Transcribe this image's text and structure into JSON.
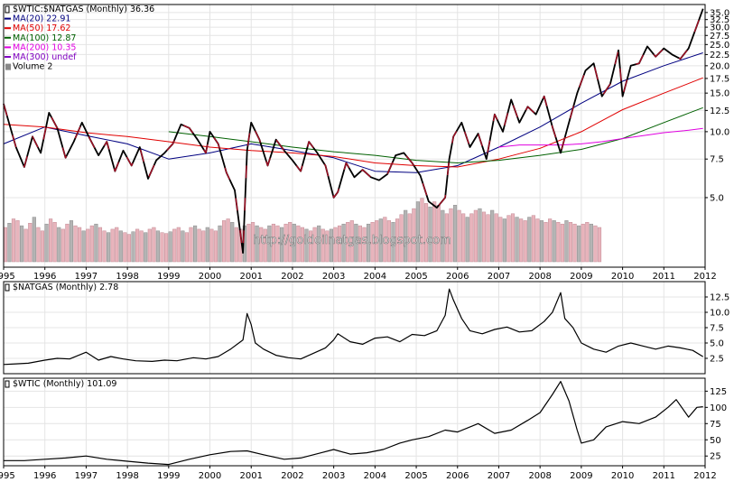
{
  "watermark": "http://goldoilnatgas.blogspot.com",
  "chart_data": [
    {
      "type": "line",
      "panel": "ratio",
      "title": "$WTIC:$NATGAS (Monthly) 36.36",
      "scale": "log",
      "ylim": [
        2.5,
        37
      ],
      "y_ticks": [
        "35.0",
        "32.5",
        "30.0",
        "27.5",
        "25.0",
        "22.5",
        "20.0",
        "17.5",
        "15.0",
        "12.5",
        "10.0",
        "7.5",
        "5.0"
      ],
      "y_tick_values": [
        35,
        32.5,
        30,
        27.5,
        25,
        22.5,
        20,
        17.5,
        15,
        12.5,
        10,
        7.5,
        5
      ],
      "x_ticks": [
        "1995",
        "1996",
        "1997",
        "1998",
        "1999",
        "2000",
        "2001",
        "2002",
        "2003",
        "2004",
        "2005",
        "2006",
        "2007",
        "2008",
        "2009",
        "2010",
        "2011",
        "2012"
      ],
      "grid": true,
      "legend_position": "top-left",
      "legend": [
        {
          "label": "$WTIC:$NATGAS (Monthly) 36.36",
          "color": "#000000"
        },
        {
          "label": "MA(20) 22.91",
          "color": "#000080"
        },
        {
          "label": "MA(50) 17.62",
          "color": "#e00000"
        },
        {
          "label": "MA(100) 12.87",
          "color": "#006000"
        },
        {
          "label": "MA(200) 10.35",
          "color": "#e000e0"
        },
        {
          "label": "MA(300) undef",
          "color": "#8000c0"
        },
        {
          "label": "Volume 2",
          "color": "#888888"
        }
      ],
      "series": [
        {
          "name": "$WTIC:$NATGAS",
          "color": "#000000",
          "x": [
            1995.0,
            1995.1,
            1995.3,
            1995.5,
            1995.7,
            1995.9,
            1996.1,
            1996.3,
            1996.5,
            1996.7,
            1996.9,
            1997.1,
            1997.3,
            1997.5,
            1997.7,
            1997.9,
            1998.1,
            1998.3,
            1998.5,
            1998.7,
            1998.9,
            1999.1,
            1999.3,
            1999.5,
            1999.7,
            1999.9,
            2000.0,
            2000.2,
            2000.4,
            2000.6,
            2000.8,
            2000.9,
            2001.0,
            2001.2,
            2001.4,
            2001.6,
            2001.8,
            2002.0,
            2002.2,
            2002.4,
            2002.6,
            2002.8,
            2003.0,
            2003.1,
            2003.3,
            2003.5,
            2003.7,
            2003.9,
            2004.1,
            2004.3,
            2004.5,
            2004.7,
            2004.9,
            2005.1,
            2005.3,
            2005.5,
            2005.7,
            2005.8,
            2005.9,
            2006.1,
            2006.3,
            2006.5,
            2006.7,
            2006.9,
            2007.1,
            2007.3,
            2007.5,
            2007.7,
            2007.9,
            2008.1,
            2008.3,
            2008.5,
            2008.7,
            2008.9,
            2009.1,
            2009.3,
            2009.5,
            2009.7,
            2009.9,
            2010.0,
            2010.2,
            2010.4,
            2010.6,
            2010.8,
            2011.0,
            2011.2,
            2011.4,
            2011.6,
            2011.8,
            2011.95
          ],
          "values": [
            13.4,
            11.5,
            8.5,
            6.9,
            9.5,
            8.0,
            12.2,
            10.4,
            7.6,
            9.0,
            11.0,
            9.2,
            7.8,
            9.0,
            6.6,
            8.2,
            7.0,
            8.5,
            6.1,
            7.4,
            8.0,
            8.8,
            10.8,
            10.4,
            9.2,
            8.0,
            10.0,
            8.8,
            6.5,
            5.4,
            2.8,
            8.2,
            11.0,
            9.2,
            7.0,
            9.2,
            8.2,
            7.4,
            6.6,
            9.0,
            8.0,
            7.0,
            5.0,
            5.3,
            7.2,
            6.2,
            6.7,
            6.2,
            6.0,
            6.4,
            7.8,
            8.0,
            7.2,
            6.3,
            4.8,
            4.5,
            5.0,
            7.5,
            9.5,
            11.0,
            8.5,
            9.8,
            7.5,
            12.0,
            10.0,
            14.0,
            11.0,
            13.0,
            12.0,
            14.5,
            10.5,
            8.0,
            11.0,
            15.0,
            19.0,
            20.5,
            14.5,
            16.5,
            23.5,
            14.5,
            20.0,
            20.5,
            24.5,
            22.0,
            24.0,
            22.5,
            21.5,
            24.0,
            30.5,
            36.4
          ]
        },
        {
          "name": "MA(20)",
          "color": "#000080",
          "x": [
            1995.0,
            1996.0,
            1997.0,
            1998.0,
            1999.0,
            2000.0,
            2001.0,
            2002.0,
            2003.0,
            2004.0,
            2005.0,
            2006.0,
            2007.0,
            2008.0,
            2009.0,
            2010.0,
            2011.0,
            2011.95
          ],
          "values": [
            8.8,
            10.5,
            9.6,
            8.8,
            7.5,
            8.0,
            8.8,
            8.2,
            7.6,
            6.6,
            6.5,
            7.0,
            8.5,
            10.5,
            13.5,
            17.0,
            20.0,
            22.91
          ]
        },
        {
          "name": "MA(50)",
          "color": "#e00000",
          "x": [
            1995.0,
            1996.0,
            1997.0,
            1998.0,
            1999.0,
            2000.0,
            2001.0,
            2002.0,
            2003.0,
            2004.0,
            2005.0,
            2006.0,
            2007.0,
            2008.0,
            2009.0,
            2010.0,
            2011.0,
            2011.95
          ],
          "values": [
            10.8,
            10.5,
            9.9,
            9.5,
            9.0,
            8.5,
            8.2,
            8.0,
            7.7,
            7.2,
            7.0,
            6.9,
            7.5,
            8.4,
            10.0,
            12.6,
            15.0,
            17.62
          ]
        },
        {
          "name": "MA(100)",
          "color": "#006000",
          "x": [
            1999.0,
            2000.0,
            2001.0,
            2002.0,
            2003.0,
            2004.0,
            2005.0,
            2006.0,
            2007.0,
            2008.0,
            2009.0,
            2010.0,
            2011.0,
            2011.95
          ],
          "values": [
            10.0,
            9.5,
            9.0,
            8.5,
            8.1,
            7.8,
            7.4,
            7.2,
            7.4,
            7.8,
            8.3,
            9.3,
            11.0,
            12.87
          ]
        },
        {
          "name": "MA(200)",
          "color": "#e000e0",
          "x": [
            2007.0,
            2007.5,
            2008.0,
            2008.5,
            2009.0,
            2009.5,
            2010.0,
            2010.5,
            2011.0,
            2011.5,
            2011.95
          ],
          "values": [
            8.5,
            8.7,
            8.7,
            8.7,
            8.8,
            9.0,
            9.3,
            9.6,
            9.9,
            10.1,
            10.35
          ]
        }
      ],
      "volume": {
        "name": "Volume",
        "x_start": 1995.0,
        "step": 0.1,
        "values": [
          40,
          45,
          50,
          48,
          42,
          38,
          45,
          52,
          40,
          36,
          44,
          50,
          46,
          40,
          38,
          44,
          48,
          42,
          40,
          36,
          38,
          42,
          44,
          40,
          36,
          34,
          38,
          40,
          36,
          34,
          32,
          35,
          38,
          36,
          34,
          38,
          40,
          36,
          34,
          33,
          35,
          38,
          40,
          36,
          34,
          40,
          42,
          38,
          36,
          40,
          38,
          36,
          42,
          48,
          50,
          46,
          40,
          38,
          42,
          44,
          46,
          42,
          40,
          38,
          42,
          44,
          42,
          40,
          44,
          46,
          44,
          42,
          40,
          38,
          36,
          40,
          42,
          38,
          36,
          38,
          40,
          42,
          44,
          46,
          48,
          44,
          42,
          40,
          44,
          46,
          48,
          50,
          52,
          48,
          46,
          50,
          55,
          60,
          56,
          62,
          70,
          74,
          68,
          64,
          70,
          66,
          60,
          56,
          62,
          66,
          60,
          56,
          52,
          56,
          60,
          62,
          58,
          55,
          60,
          56,
          52,
          50,
          54,
          56,
          52,
          50,
          48,
          52,
          54,
          50,
          48,
          46,
          50,
          48,
          46,
          44,
          48,
          46,
          44,
          42,
          44,
          46,
          44,
          42,
          40
        ]
      }
    },
    {
      "type": "line",
      "panel": "natgas",
      "title": "$NATGAS (Monthly) 2.78",
      "ylim": [
        0,
        15
      ],
      "y_ticks": [
        "12.5",
        "10.0",
        "7.5",
        "5.0",
        "2.5"
      ],
      "y_tick_values": [
        12.5,
        10,
        7.5,
        5,
        2.5
      ],
      "grid": true,
      "series": [
        {
          "name": "$NATGAS",
          "color": "#000000",
          "x": [
            1995.0,
            1995.3,
            1995.6,
            1996.0,
            1996.3,
            1996.6,
            1997.0,
            1997.3,
            1997.6,
            1997.9,
            1998.2,
            1998.6,
            1998.9,
            1999.2,
            1999.6,
            1999.9,
            2000.2,
            2000.5,
            2000.8,
            2000.9,
            2001.0,
            2001.1,
            2001.3,
            2001.6,
            2001.9,
            2002.2,
            2002.5,
            2002.8,
            2003.0,
            2003.1,
            2003.4,
            2003.7,
            2004.0,
            2004.3,
            2004.6,
            2004.9,
            2005.2,
            2005.5,
            2005.7,
            2005.8,
            2005.9,
            2006.1,
            2006.3,
            2006.6,
            2006.9,
            2007.2,
            2007.5,
            2007.8,
            2008.1,
            2008.3,
            2008.5,
            2008.6,
            2008.8,
            2009.0,
            2009.3,
            2009.6,
            2009.9,
            2010.2,
            2010.5,
            2010.8,
            2011.1,
            2011.4,
            2011.7,
            2011.95
          ],
          "values": [
            1.5,
            1.6,
            1.7,
            2.2,
            2.5,
            2.4,
            3.5,
            2.2,
            2.8,
            2.4,
            2.1,
            2.0,
            2.2,
            2.1,
            2.6,
            2.4,
            2.8,
            4.0,
            5.5,
            9.8,
            8.0,
            5.0,
            4.0,
            3.0,
            2.6,
            2.4,
            3.3,
            4.2,
            5.5,
            6.5,
            5.2,
            4.8,
            5.8,
            6.0,
            5.2,
            6.4,
            6.2,
            7.0,
            9.5,
            13.8,
            12.0,
            9.0,
            7.0,
            6.5,
            7.2,
            7.6,
            6.8,
            7.0,
            8.5,
            10.0,
            13.2,
            9.0,
            7.5,
            5.0,
            4.0,
            3.5,
            4.5,
            5.0,
            4.5,
            4.0,
            4.5,
            4.2,
            3.8,
            2.78
          ]
        }
      ]
    },
    {
      "type": "line",
      "panel": "wtic",
      "title": "$WTIC (Monthly) 101.09",
      "ylim": [
        10,
        145
      ],
      "y_ticks": [
        "125",
        "100",
        "75",
        "50",
        "25"
      ],
      "y_tick_values": [
        125,
        100,
        75,
        50,
        25
      ],
      "x_ticks": [
        "1995",
        "1996",
        "1997",
        "1998",
        "1999",
        "2000",
        "2001",
        "2002",
        "2003",
        "2004",
        "2005",
        "2006",
        "2007",
        "2008",
        "2009",
        "2010",
        "2011",
        "2012"
      ],
      "grid": true,
      "series": [
        {
          "name": "$WTIC",
          "color": "#000000",
          "x": [
            1995.0,
            1995.5,
            1996.0,
            1996.5,
            1997.0,
            1997.5,
            1998.0,
            1998.5,
            1999.0,
            1999.5,
            2000.0,
            2000.5,
            2000.9,
            2001.3,
            2001.8,
            2002.2,
            2002.7,
            2003.0,
            2003.4,
            2003.8,
            2004.2,
            2004.6,
            2004.9,
            2005.3,
            2005.7,
            2006.0,
            2006.5,
            2006.9,
            2007.3,
            2007.7,
            2008.0,
            2008.3,
            2008.5,
            2008.7,
            2008.9,
            2009.0,
            2009.3,
            2009.6,
            2010.0,
            2010.4,
            2010.8,
            2011.1,
            2011.3,
            2011.6,
            2011.8,
            2011.95
          ],
          "values": [
            18,
            18,
            20,
            22,
            25,
            20,
            17,
            14,
            12,
            20,
            27,
            32,
            33,
            27,
            20,
            22,
            30,
            35,
            28,
            30,
            35,
            45,
            50,
            55,
            65,
            62,
            75,
            60,
            65,
            80,
            92,
            120,
            140,
            110,
            65,
            45,
            50,
            70,
            78,
            75,
            85,
            100,
            112,
            85,
            100,
            101
          ]
        }
      ]
    }
  ]
}
